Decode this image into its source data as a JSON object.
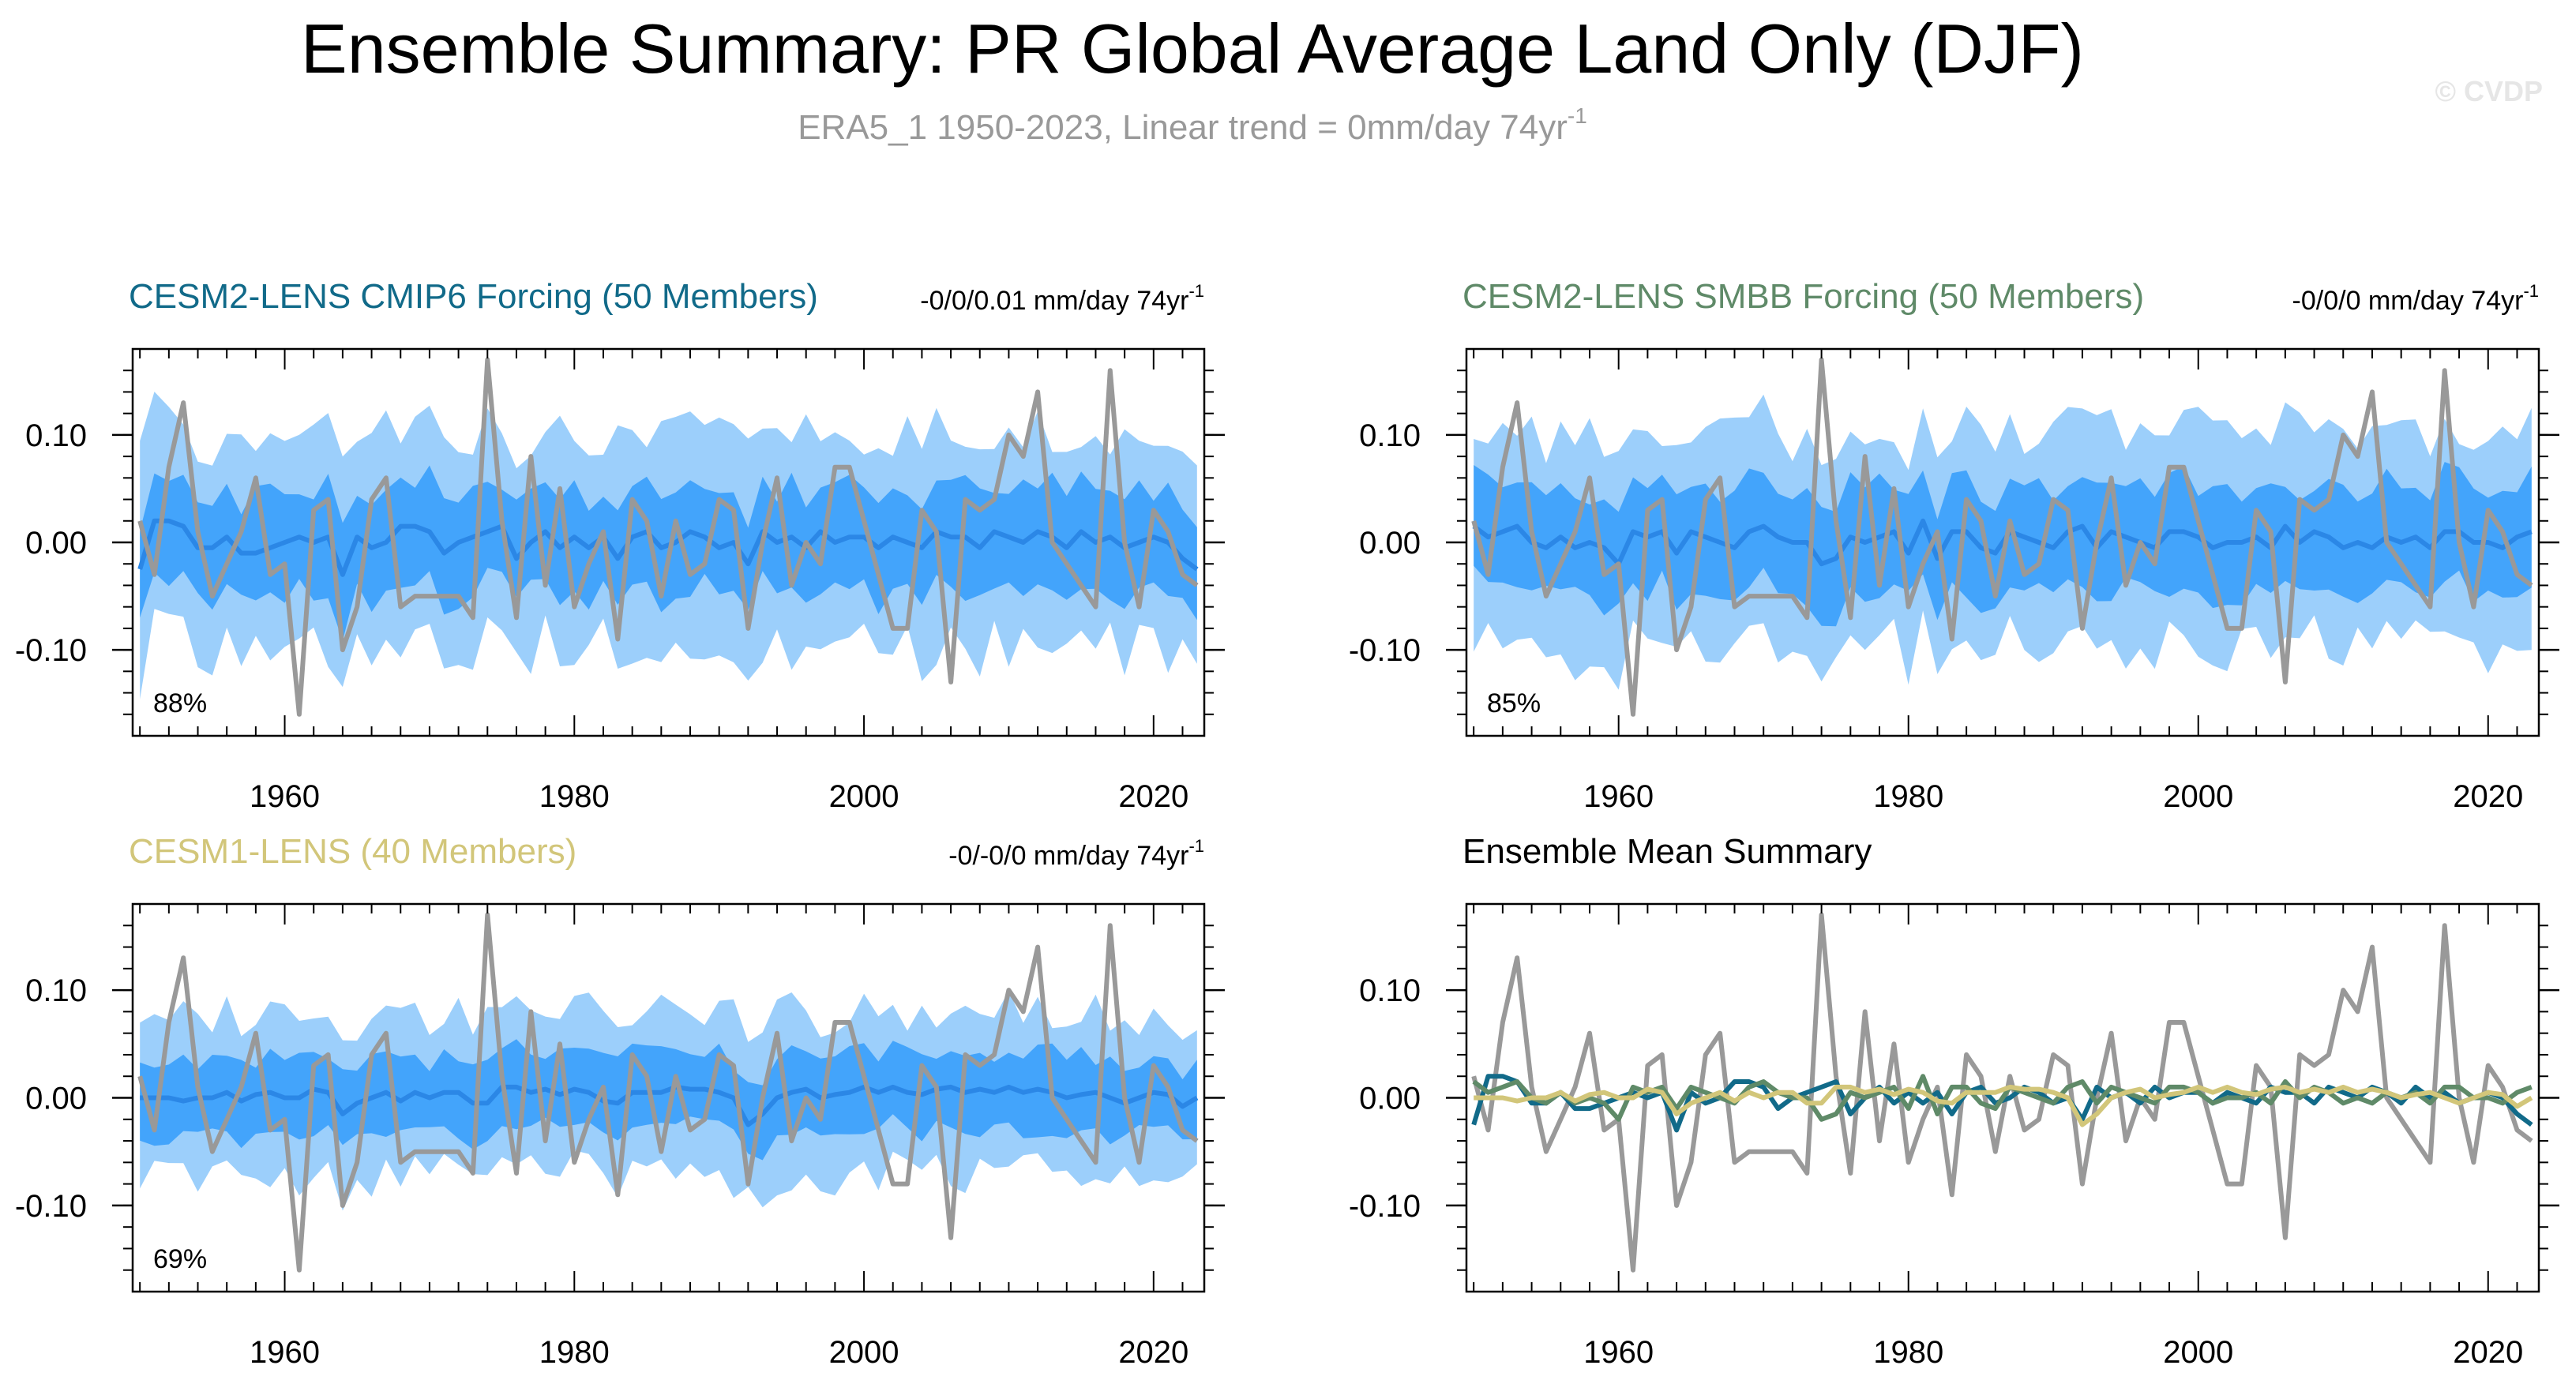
{
  "page": {
    "title": "Ensemble Summary: PR Global Average Land Only (DJF)",
    "subtitle": "ERA5_1 1950-2023, Linear trend = 0mm/day 74yr",
    "subtitle_superscript": "-1",
    "watermark": "© CVDP"
  },
  "colors": {
    "cmip6": "#116a89",
    "smbb": "#5f8a68",
    "cesm1": "#d2c67a",
    "obs": "#999999",
    "band_outer": "#9ccffb",
    "band_inner": "#43a4fb",
    "ens_mean": "#2b87e6"
  },
  "obs_series": [
    0.02,
    -0.03,
    0.07,
    0.13,
    0.01,
    -0.05,
    -0.02,
    0.01,
    0.06,
    -0.03,
    -0.02,
    -0.16,
    0.03,
    0.04,
    -0.1,
    -0.06,
    0.04,
    0.06,
    -0.06,
    -0.05,
    -0.05,
    -0.05,
    -0.05,
    -0.07,
    0.17,
    0.02,
    -0.07,
    0.08,
    -0.04,
    0.05,
    -0.06,
    -0.02,
    0.01,
    -0.09,
    0.04,
    0.02,
    -0.05,
    0.02,
    -0.03,
    -0.02,
    0.04,
    0.03,
    -0.08,
    0.0,
    0.06,
    -0.04,
    0.0,
    -0.02,
    0.07,
    0.07,
    0.02,
    -0.03,
    -0.08,
    -0.08,
    0.03,
    0.01,
    -0.13,
    0.04,
    0.03,
    0.04,
    0.1,
    0.08,
    0.14,
    0.0,
    -0.02,
    -0.04,
    -0.06,
    0.16,
    0.0,
    -0.06,
    0.03,
    0.01,
    -0.03,
    -0.04
  ],
  "chart_data": [
    {
      "type": "area",
      "title": "CESM2-LENS CMIP6 Forcing (50 Members)",
      "trend_label": "-0/0/0.01 mm/day 74yr",
      "trend_sup": "-1",
      "percent_label": "88%",
      "x_start": 1950,
      "x_end": 2023,
      "xlim": [
        1949.5,
        2023.5
      ],
      "ylim": [
        -0.18,
        0.18
      ],
      "xticks": [
        1960,
        1980,
        2000,
        2020
      ],
      "yticks": [
        0.1,
        0.0,
        -0.1
      ],
      "ytick_labels": [
        "0.10",
        "0.00",
        "-0.10"
      ],
      "series": [
        {
          "name": "10-90% range",
          "amplitude": 0.1
        },
        {
          "name": "25-75% range",
          "amplitude": 0.048
        },
        {
          "name": "ensemble mean",
          "values": [
            -0.025,
            0.02,
            0.02,
            0.015,
            -0.005,
            -0.005,
            0.005,
            -0.01,
            -0.01,
            -0.005,
            0.0,
            0.005,
            0.0,
            0.005,
            -0.03,
            0.005,
            -0.005,
            0.0,
            0.015,
            0.015,
            0.01,
            -0.01,
            0.0,
            0.005,
            0.01,
            0.015,
            -0.015,
            0.0,
            0.01,
            -0.005,
            0.005,
            -0.005,
            0.005,
            -0.015,
            0.005,
            0.01,
            -0.005,
            0.0,
            0.01,
            0.005,
            -0.005,
            0.0,
            -0.02,
            0.01,
            0.0,
            0.005,
            -0.005,
            0.01,
            0.0,
            0.005,
            0.005,
            -0.005,
            0.005,
            0.0,
            -0.005,
            0.01,
            0.005,
            0.005,
            -0.005,
            0.01,
            0.005,
            0.0,
            0.01,
            0.005,
            -0.005,
            0.01,
            0.0,
            0.005,
            -0.005,
            0.0,
            0.005,
            0.0,
            -0.015,
            -0.025
          ]
        },
        {
          "name": "observations",
          "ref": "obs"
        }
      ]
    },
    {
      "type": "area",
      "title": "CESM2-LENS SMBB Forcing (50 Members)",
      "trend_label": "-0/0/0 mm/day 74yr",
      "trend_sup": "-1",
      "percent_label": "85%",
      "x_start": 1950,
      "x_end": 2023,
      "xlim": [
        1949.5,
        2023.5
      ],
      "ylim": [
        -0.18,
        0.18
      ],
      "xticks": [
        1960,
        1980,
        2000,
        2020
      ],
      "yticks": [
        0.1,
        0.0,
        -0.1
      ],
      "ytick_labels": [
        "0.10",
        "0.00",
        "-0.10"
      ],
      "series": [
        {
          "name": "10-90% range",
          "amplitude": 0.1
        },
        {
          "name": "25-75% range",
          "amplitude": 0.05
        },
        {
          "name": "ensemble mean",
          "values": [
            0.015,
            0.005,
            0.01,
            0.015,
            0.0,
            -0.005,
            0.005,
            -0.005,
            0.0,
            -0.005,
            -0.02,
            0.01,
            0.005,
            0.01,
            -0.01,
            0.01,
            0.005,
            0.0,
            -0.005,
            0.01,
            0.015,
            0.005,
            0.0,
            0.0,
            -0.02,
            -0.015,
            0.005,
            0.0,
            0.005,
            0.01,
            -0.01,
            0.02,
            -0.015,
            0.01,
            0.01,
            -0.005,
            -0.01,
            0.01,
            0.005,
            0.0,
            -0.005,
            0.01,
            0.015,
            -0.005,
            0.01,
            0.005,
            0.0,
            -0.005,
            0.01,
            0.01,
            0.005,
            -0.005,
            0.0,
            0.0,
            0.005,
            -0.005,
            0.015,
            0.0,
            0.01,
            0.005,
            -0.005,
            0.0,
            -0.005,
            0.005,
            0.0,
            0.005,
            -0.005,
            0.01,
            0.01,
            0.0,
            0.0,
            -0.005,
            0.005,
            0.01
          ]
        },
        {
          "name": "observations",
          "ref": "obs"
        }
      ]
    },
    {
      "type": "area",
      "title": "CESM1-LENS (40 Members)",
      "trend_label": "-0/-0/0 mm/day 74yr",
      "trend_sup": "-1",
      "percent_label": "69%",
      "x_start": 1950,
      "x_end": 2023,
      "xlim": [
        1949.5,
        2023.5
      ],
      "ylim": [
        -0.18,
        0.18
      ],
      "xticks": [
        1960,
        1980,
        2000,
        2020
      ],
      "yticks": [
        0.1,
        0.0,
        -0.1
      ],
      "ytick_labels": [
        "0.10",
        "0.00",
        "-0.10"
      ],
      "series": [
        {
          "name": "10-90% range",
          "amplitude": 0.075
        },
        {
          "name": "25-75% range",
          "amplitude": 0.035
        },
        {
          "name": "ensemble mean",
          "values": [
            0.0,
            0.0,
            0.0,
            -0.003,
            0.0,
            0.0,
            0.005,
            -0.003,
            0.003,
            0.005,
            0.0,
            0.0,
            0.008,
            0.005,
            -0.015,
            -0.005,
            0.0,
            0.005,
            -0.003,
            0.005,
            0.0,
            0.005,
            0.005,
            -0.005,
            -0.005,
            0.01,
            0.01,
            0.005,
            0.008,
            0.003,
            0.008,
            0.005,
            -0.003,
            -0.005,
            0.005,
            0.005,
            0.005,
            0.01,
            0.008,
            0.008,
            0.005,
            0.0,
            -0.025,
            -0.015,
            0.0,
            0.005,
            0.008,
            0.0,
            0.003,
            0.005,
            0.01,
            0.005,
            0.01,
            0.005,
            0.003,
            0.008,
            0.01,
            0.005,
            0.008,
            0.005,
            0.01,
            0.005,
            0.008,
            0.005,
            0.0,
            0.003,
            0.005,
            0.0,
            -0.005,
            0.0,
            0.005,
            0.003,
            -0.008,
            0.0
          ]
        },
        {
          "name": "observations",
          "ref": "obs"
        }
      ]
    },
    {
      "type": "line",
      "title": "Ensemble Mean Summary",
      "x_start": 1950,
      "x_end": 2023,
      "xlim": [
        1949.5,
        2023.5
      ],
      "ylim": [
        -0.18,
        0.18
      ],
      "xticks": [
        1960,
        1980,
        2000,
        2020
      ],
      "yticks": [
        0.1,
        0.0,
        -0.1
      ],
      "ytick_labels": [
        "0.10",
        "0.00",
        "-0.10"
      ],
      "series": [
        {
          "name": "observations",
          "ref": "obs"
        },
        {
          "name": "CESM2-LENS CMIP6 Forcing",
          "ref": 0
        },
        {
          "name": "CESM2-LENS SMBB Forcing",
          "ref": 1
        },
        {
          "name": "CESM1-LENS",
          "ref": 2
        }
      ]
    }
  ]
}
